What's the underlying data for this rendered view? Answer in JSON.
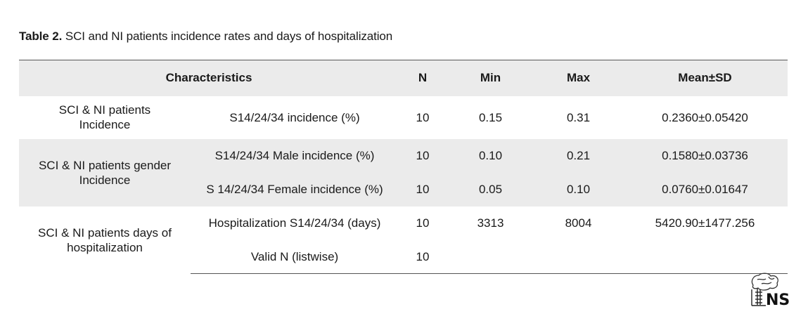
{
  "caption": {
    "label": "Table 2.",
    "text": "SCI and NI patients incidence rates and days of hospitalization"
  },
  "table": {
    "headers": [
      "Characteristics",
      "N",
      "Min",
      "Max",
      "Mean±SD"
    ],
    "groups": [
      {
        "label": "SCI & NI patients Incidence",
        "rows": [
          {
            "characteristic": "S14/24/34 incidence (%)",
            "n": "10",
            "min": "0.15",
            "max": "0.31",
            "mean_sd": "0.2360±0.05420"
          }
        ]
      },
      {
        "label": "SCI & NI patients gender Incidence",
        "rows": [
          {
            "characteristic": "S14/24/34 Male incidence (%)",
            "n": "10",
            "min": "0.10",
            "max": "0.21",
            "mean_sd": "0.1580±0.03736"
          },
          {
            "characteristic": "S 14/24/34 Female incidence (%)",
            "n": "10",
            "min": "0.05",
            "max": "0.10",
            "mean_sd": "0.0760±0.01647"
          }
        ]
      },
      {
        "label": "SCI & NI patients days of hospitalization",
        "rows": [
          {
            "characteristic": "Hospitalization S14/24/34 (days)",
            "n": "10",
            "min": "3313",
            "max": "8004",
            "mean_sd": "5420.90±1477.256"
          },
          {
            "characteristic": "Valid N (listwise)",
            "n": "10",
            "min": "",
            "max": "",
            "mean_sd": ""
          }
        ]
      }
    ]
  },
  "logo": {
    "text": "NS"
  },
  "colors": {
    "row_shade": "#ebebeb",
    "rule": "#555555",
    "text": "#1a1a1a"
  }
}
